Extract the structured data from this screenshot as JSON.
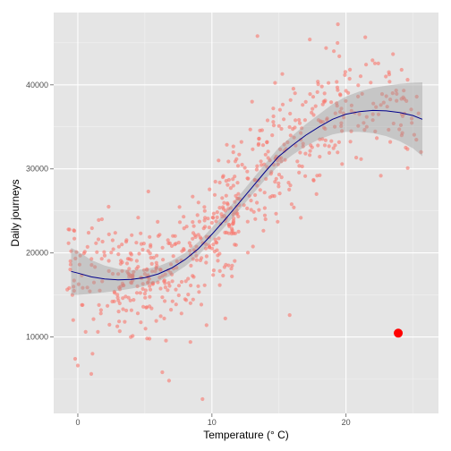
{
  "chart_data": {
    "type": "scatter",
    "title": "",
    "xlabel": "Temperature (° C)",
    "ylabel": "Daily journeys",
    "xlim": [
      -1.8,
      26.9
    ],
    "ylim": [
      900,
      48600
    ],
    "x_ticks": [
      0,
      10,
      20
    ],
    "y_ticks": [
      10000,
      20000,
      30000,
      40000
    ],
    "x_minor_ticks": [
      5,
      15,
      25
    ],
    "y_minor_ticks": [
      5000,
      15000,
      25000,
      35000,
      45000
    ],
    "grid": true,
    "legend": "none",
    "background_color": "#e5e5e5",
    "point_color": "#f8766d",
    "point_alpha": 0.6,
    "smooth_color": "#00008b",
    "ribbon_color": "#b3b3b3",
    "highlight_color": "#ff0000",
    "n_points": 700,
    "series": [
      {
        "kind": "scatter",
        "note_trend": "journeys increase with temperature",
        "points_sample": [
          [
            -0.7,
            22800
          ],
          [
            -0.3,
            22700
          ],
          [
            -0.5,
            20200
          ],
          [
            -0.2,
            7400
          ],
          [
            0.0,
            6600
          ],
          [
            0.3,
            13800
          ],
          [
            0.8,
            22400
          ],
          [
            1.0,
            5600
          ],
          [
            1.1,
            8000
          ],
          [
            1.5,
            10600
          ],
          [
            1.8,
            24000
          ],
          [
            2.3,
            25500
          ],
          [
            2.6,
            21500
          ],
          [
            3.2,
            16000
          ],
          [
            3.5,
            11800
          ],
          [
            4.0,
            19800
          ],
          [
            4.5,
            24200
          ],
          [
            5.0,
            17500
          ],
          [
            5.5,
            13400
          ],
          [
            6.0,
            22000
          ],
          [
            6.3,
            5800
          ],
          [
            6.8,
            4800
          ],
          [
            7.4,
            19000
          ],
          [
            8.0,
            14500
          ],
          [
            8.4,
            9400
          ],
          [
            9.0,
            26000
          ],
          [
            9.3,
            2600
          ],
          [
            9.6,
            11400
          ],
          [
            10.1,
            21000
          ],
          [
            10.5,
            31000
          ],
          [
            11.0,
            12200
          ],
          [
            11.6,
            28000
          ],
          [
            12.2,
            33200
          ],
          [
            13.0,
            38000
          ],
          [
            13.4,
            45800
          ],
          [
            14.0,
            24000
          ],
          [
            14.5,
            34000
          ],
          [
            15.2,
            29000
          ],
          [
            15.8,
            12600
          ],
          [
            16.2,
            39000
          ],
          [
            16.8,
            33000
          ],
          [
            17.3,
            45400
          ],
          [
            17.8,
            27000
          ],
          [
            18.2,
            39800
          ],
          [
            18.6,
            36000
          ],
          [
            19.1,
            44000
          ],
          [
            19.4,
            47200
          ],
          [
            19.7,
            34500
          ],
          [
            20.3,
            41800
          ],
          [
            20.9,
            38600
          ],
          [
            21.5,
            42400
          ],
          [
            22.0,
            35800
          ],
          [
            22.6,
            37600
          ],
          [
            23.3,
            33200
          ],
          [
            24.1,
            35200
          ],
          [
            24.6,
            40600
          ],
          [
            25.6,
            32000
          ]
        ]
      },
      {
        "kind": "smooth",
        "x": [
          -0.5,
          0,
          1,
          2,
          3,
          4,
          5,
          6,
          7,
          8,
          9,
          10,
          11,
          12,
          13,
          14,
          15,
          16,
          17,
          18,
          19,
          20,
          21,
          22,
          23,
          24,
          25,
          25.7
        ],
        "y": [
          17800,
          17600,
          17150,
          16900,
          16800,
          16850,
          17050,
          17500,
          18200,
          19200,
          20500,
          22200,
          24000,
          25900,
          27800,
          29700,
          31500,
          32800,
          34000,
          35000,
          35900,
          36500,
          36800,
          36950,
          36900,
          36700,
          36350,
          35900
        ],
        "ci_width": [
          2800,
          2600,
          2000,
          1600,
          1300,
          1100,
          1000,
          900,
          850,
          800,
          800,
          800,
          820,
          850,
          900,
          950,
          1050,
          1150,
          1300,
          1500,
          1800,
          2100,
          2400,
          2700,
          3000,
          3400,
          3900,
          4400
        ]
      },
      {
        "kind": "highlight",
        "x": 23.9,
        "y": 10450
      }
    ]
  }
}
